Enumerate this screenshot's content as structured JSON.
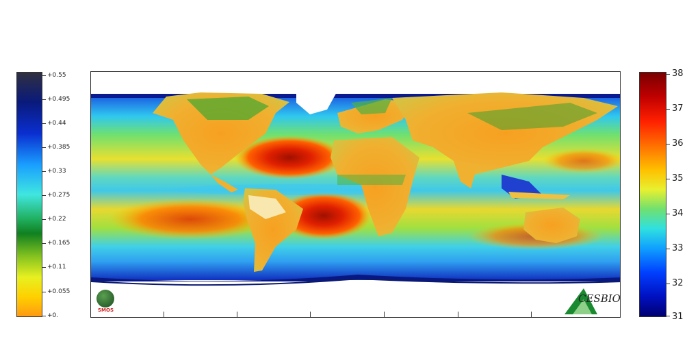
{
  "left_colorbar": {
    "labels": [
      "+0.55",
      "+0.495",
      "+0.44",
      "+0.385",
      "+0.33",
      "+0.275",
      "+0.22",
      "+0.165",
      "+0.11",
      "+0.055",
      "+0."
    ]
  },
  "right_colorbar": {
    "labels": [
      "38",
      "37",
      "36",
      "35",
      "34",
      "33",
      "32",
      "31"
    ]
  },
  "logos": {
    "smos_text": "SMOS",
    "cesbio_text": "CESBIO"
  },
  "colors": {
    "ocean_high": "#d42000",
    "ocean_mid": "#40e0c0",
    "land": "#f5a020",
    "polar": "#1020a0"
  }
}
